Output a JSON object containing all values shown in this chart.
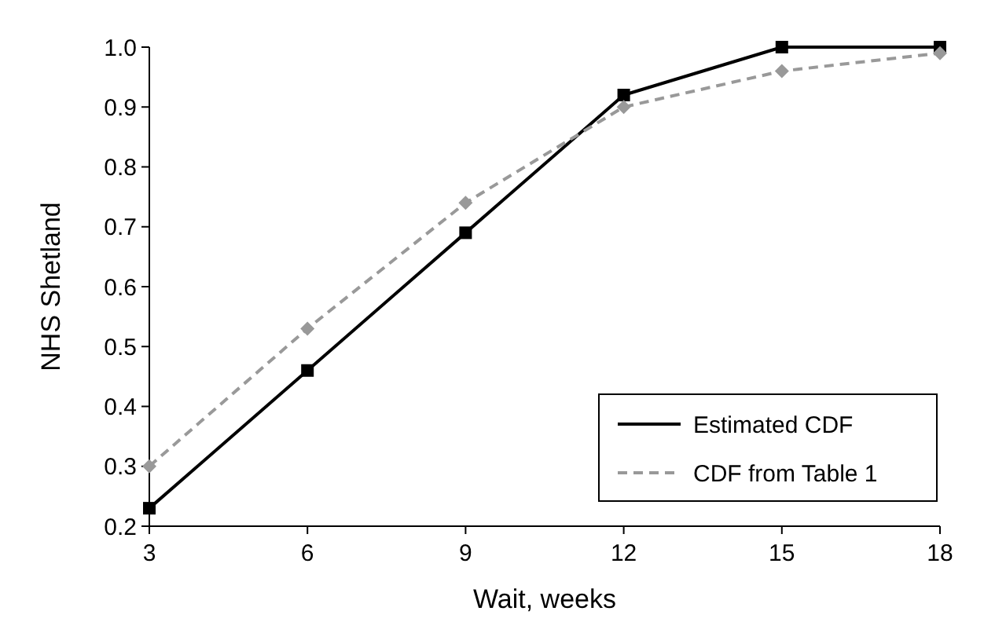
{
  "chart_data": {
    "type": "line",
    "xlabel": "Wait, weeks",
    "ylabel": "NHS Shetland",
    "x": [
      3,
      6,
      9,
      12,
      15,
      18
    ],
    "series": [
      {
        "name": "Estimated CDF",
        "color": "#000000",
        "values": [
          0.23,
          0.46,
          0.69,
          0.92,
          1.0,
          1.0
        ],
        "marker": "square",
        "line_style": "solid"
      },
      {
        "name": "CDF from Table 1",
        "color": "#999999",
        "values": [
          0.3,
          0.53,
          0.74,
          0.9,
          0.96,
          0.99
        ],
        "marker": "diamond",
        "line_style": "dashed"
      }
    ],
    "xlim": [
      3,
      18
    ],
    "xticks": [
      3,
      6,
      9,
      12,
      15,
      18
    ],
    "ylim": [
      0.2,
      1.0
    ],
    "yticks": [
      {
        "value": 0.2,
        "label": "0.2"
      },
      {
        "value": 0.3,
        "label": "0.3"
      },
      {
        "value": 0.4,
        "label": "0.4"
      },
      {
        "value": 0.5,
        "label": "0.5"
      },
      {
        "value": 0.6,
        "label": "0.6"
      },
      {
        "value": 0.7,
        "label": "0.7"
      },
      {
        "value": 0.8,
        "label": "0.8"
      },
      {
        "value": 0.9,
        "label": "0.9"
      },
      {
        "value": 1.0,
        "label": "1.0"
      }
    ],
    "grid": false,
    "legend": "bottom right"
  }
}
